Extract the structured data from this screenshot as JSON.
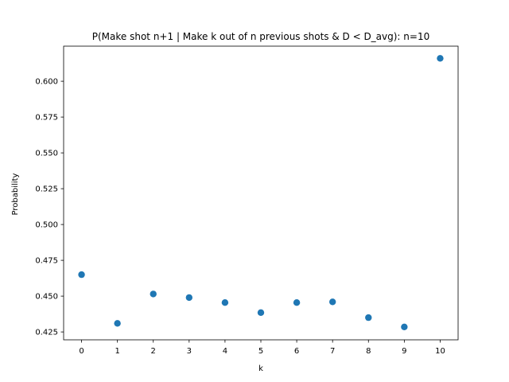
{
  "chart_data": {
    "type": "scatter",
    "title": "P(Make shot n+1 | Make k out of n previous shots & D < D_avg): n=10",
    "xlabel": "k",
    "ylabel": "Probability",
    "x": [
      0,
      1,
      2,
      3,
      4,
      5,
      6,
      7,
      8,
      9,
      10
    ],
    "y": [
      0.465,
      0.431,
      0.4515,
      0.449,
      0.4455,
      0.4385,
      0.4455,
      0.446,
      0.435,
      0.4285,
      0.616
    ],
    "xlim": [
      -0.5,
      10.5
    ],
    "ylim": [
      0.4195,
      0.6245
    ],
    "xticks": [
      0,
      1,
      2,
      3,
      4,
      5,
      6,
      7,
      8,
      9,
      10
    ],
    "xtick_labels": [
      "0",
      "1",
      "2",
      "3",
      "4",
      "5",
      "6",
      "7",
      "8",
      "9",
      "10"
    ],
    "yticks": [
      0.425,
      0.45,
      0.475,
      0.5,
      0.525,
      0.55,
      0.575,
      0.6
    ],
    "ytick_labels": [
      "0.425",
      "0.450",
      "0.475",
      "0.500",
      "0.525",
      "0.550",
      "0.575",
      "0.600"
    ],
    "marker_color": "#1f77b4",
    "grid": false,
    "legend": "none"
  }
}
